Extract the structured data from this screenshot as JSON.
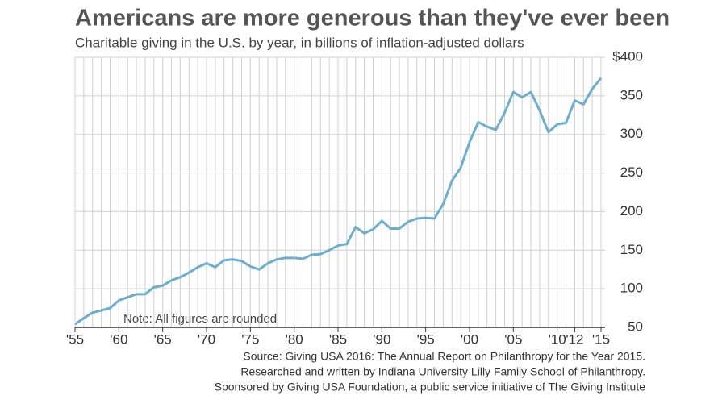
{
  "chart_data": {
    "type": "line",
    "title": "Americans are more generous than they've ever been",
    "subtitle": "Charitable giving in the U.S. by year, in billions of inflation-adjusted dollars",
    "annotation": "Note: All figures are rounded",
    "source": [
      "Source: Giving USA 2016: The Annual Report on Philanthropy for the Year 2015.",
      "Researched and written by Indiana University Lilly Family School of Philanthropy.",
      "Sponsored by Giving USA Foundation, a public service initiative of The Giving Institute"
    ],
    "x": [
      1955,
      1956,
      1957,
      1958,
      1959,
      1960,
      1961,
      1962,
      1963,
      1964,
      1965,
      1966,
      1967,
      1968,
      1969,
      1970,
      1971,
      1972,
      1973,
      1974,
      1975,
      1976,
      1977,
      1978,
      1979,
      1980,
      1981,
      1982,
      1983,
      1984,
      1985,
      1986,
      1987,
      1988,
      1989,
      1990,
      1991,
      1992,
      1993,
      1994,
      1995,
      1996,
      1997,
      1998,
      1999,
      2000,
      2001,
      2002,
      2003,
      2004,
      2005,
      2006,
      2007,
      2008,
      2009,
      2010,
      2011,
      2012,
      2013,
      2014,
      2015
    ],
    "series": [
      {
        "color": "#6aafd0",
        "values": [
          54,
          62,
          69,
          72,
          75,
          85,
          89,
          93,
          93,
          102,
          104,
          111,
          115,
          121,
          128,
          133,
          128,
          137,
          138,
          136,
          129,
          125,
          133,
          138,
          140,
          140,
          139,
          144,
          145,
          150,
          156,
          158,
          180,
          172,
          177,
          188,
          178,
          178,
          187,
          191,
          192,
          191,
          210,
          240,
          257,
          290,
          316,
          310,
          306,
          328,
          355,
          348,
          355,
          331,
          303,
          313,
          315,
          344,
          339,
          359,
          373
        ]
      }
    ],
    "xlim": [
      1955,
      2015
    ],
    "xticks": [
      {
        "value": 1955,
        "label": "'55"
      },
      {
        "value": 1960,
        "label": "'60"
      },
      {
        "value": 1965,
        "label": "'65"
      },
      {
        "value": 1970,
        "label": "'70"
      },
      {
        "value": 1975,
        "label": "'75"
      },
      {
        "value": 1980,
        "label": "'80"
      },
      {
        "value": 1985,
        "label": "'85"
      },
      {
        "value": 1990,
        "label": "'90"
      },
      {
        "value": 1995,
        "label": "'95"
      },
      {
        "value": 2000,
        "label": "'00"
      },
      {
        "value": 2005,
        "label": "'05"
      },
      {
        "value": 2010,
        "label": "'10"
      },
      {
        "value": 2012,
        "label": "'12"
      },
      {
        "value": 2015,
        "label": "'15"
      }
    ],
    "ylim": [
      50,
      400
    ],
    "yticks": [
      50,
      100,
      150,
      200,
      250,
      300,
      350,
      {
        "value": 400,
        "label": "$400"
      }
    ],
    "grid": true
  }
}
